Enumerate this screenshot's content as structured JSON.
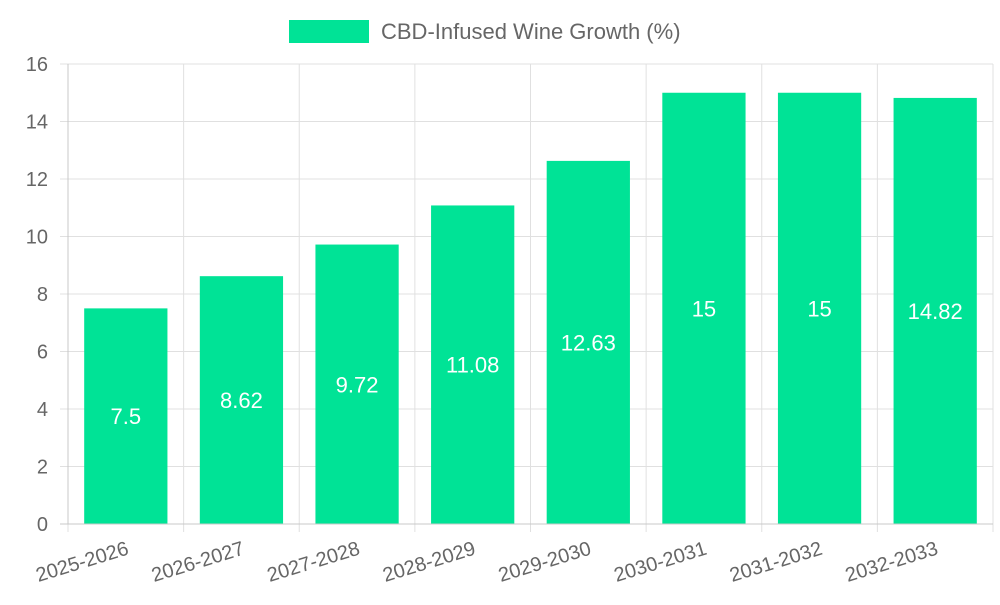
{
  "chart_data": {
    "type": "bar",
    "categories": [
      "2025-2026",
      "2026-2027",
      "2027-2028",
      "2028-2029",
      "2029-2030",
      "2030-2031",
      "2031-2032",
      "2032-2033"
    ],
    "series": [
      {
        "name": "CBD-Infused Wine Growth (%)",
        "values": [
          7.5,
          8.62,
          9.72,
          11.08,
          12.63,
          15,
          15,
          14.82
        ],
        "color": "#00e396"
      }
    ],
    "data_labels": [
      "7.5",
      "8.62",
      "9.72",
      "11.08",
      "12.63",
      "15",
      "15",
      "14.82"
    ],
    "y_ticks": [
      "0",
      "2",
      "4",
      "6",
      "8",
      "10",
      "12",
      "14",
      "16"
    ],
    "ylim": [
      0,
      16
    ],
    "grid": true,
    "legend_position": "top",
    "colors": {
      "grid": "#e0e0e0",
      "axis": "#c8c8c8",
      "tick_text": "#666666",
      "label_text": "#ffffff"
    }
  }
}
